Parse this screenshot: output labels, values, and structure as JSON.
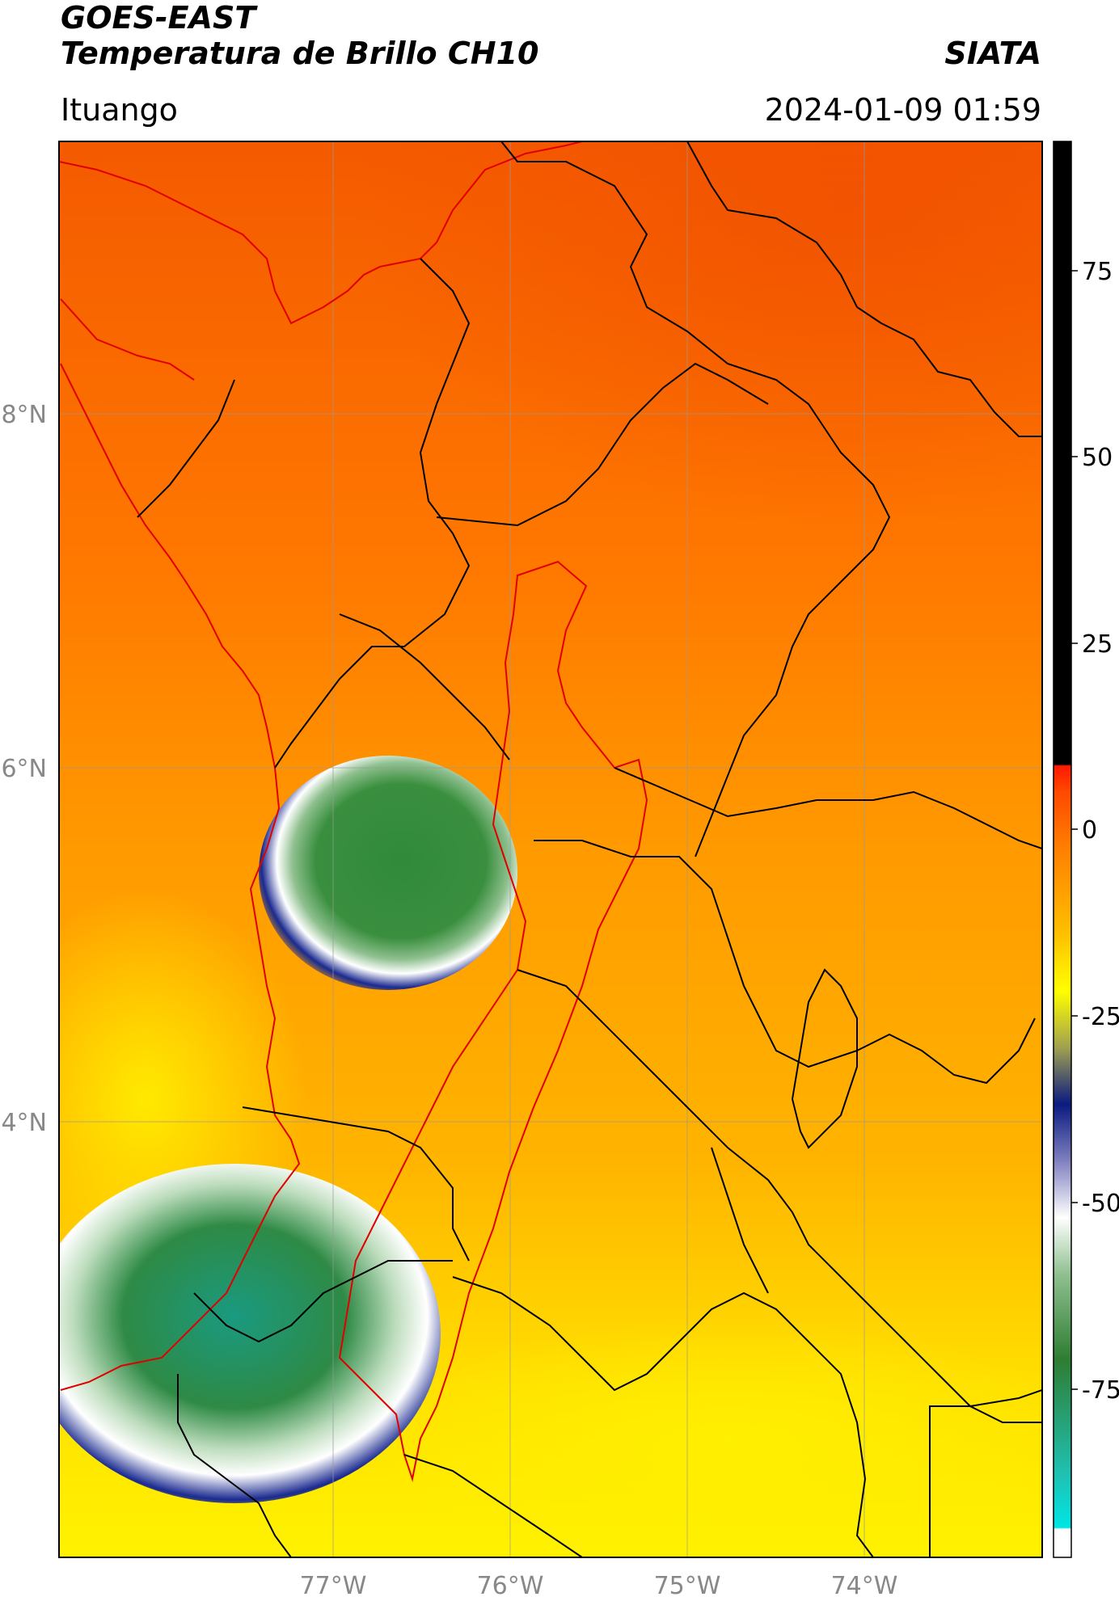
{
  "header": {
    "satellite": "GOES-EAST",
    "product": "Temperatura de Brillo CH10",
    "organization": "SIATA",
    "region": "Ituango",
    "timestamp": "2024-01-09 01:59"
  },
  "map": {
    "lat_labels": [
      "8°N",
      "6°N",
      "4°N"
    ],
    "lon_labels": [
      "77°W",
      "76°W",
      "75°W",
      "74°W"
    ],
    "gridlines": true
  },
  "colorbar": {
    "tick_labels": [
      "75",
      "50",
      "25",
      "0",
      "-25",
      "-50",
      "-75"
    ],
    "colors": {
      "black": "#000000",
      "red": "#ff1a00",
      "orange": "#ff7a00",
      "yellow": "#ffff00",
      "navy": "#0a1a80",
      "white": "#ffffff",
      "green": "#2e7d32",
      "cyan": "#00e5e5"
    }
  }
}
